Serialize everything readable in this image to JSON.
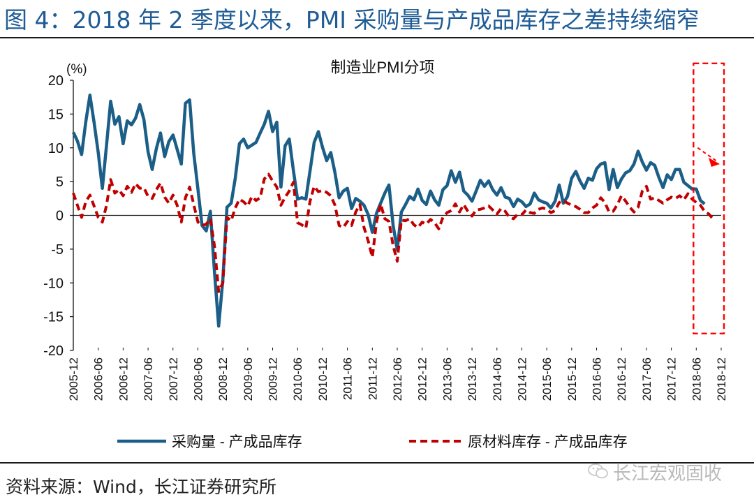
{
  "figure": {
    "title": "图 4：2018 年 2 季度以来，PMI 采购量与产成品库存之差持续缩窄",
    "source": "资料来源：Wind，长江证券研究所",
    "watermark": "长江宏观固收",
    "watermark_icon": "wechat-icon"
  },
  "colors": {
    "title": "#1f5c96",
    "series_1": "#1b5e87",
    "series_2": "#c00000",
    "highlight": "#ff0000"
  },
  "chart_data": {
    "type": "line",
    "title": "制造业PMI分项",
    "unit_label": "(%)",
    "ylim": [
      -20,
      20
    ],
    "yticks": [
      "20",
      "15",
      "10",
      "5",
      "0",
      "-5",
      "-10",
      "-15",
      "-20"
    ],
    "xlim": [
      0,
      156
    ],
    "xticks": [
      {
        "i": 0,
        "label": "2005-12"
      },
      {
        "i": 6,
        "label": "2006-06"
      },
      {
        "i": 12,
        "label": "2006-12"
      },
      {
        "i": 18,
        "label": "2007-06"
      },
      {
        "i": 24,
        "label": "2007-12"
      },
      {
        "i": 30,
        "label": "2008-06"
      },
      {
        "i": 36,
        "label": "2008-12"
      },
      {
        "i": 42,
        "label": "2009-06"
      },
      {
        "i": 48,
        "label": "2009-12"
      },
      {
        "i": 54,
        "label": "2010-06"
      },
      {
        "i": 60,
        "label": "2010-12"
      },
      {
        "i": 66,
        "label": "2011-06"
      },
      {
        "i": 72,
        "label": "2011-12"
      },
      {
        "i": 78,
        "label": "2012-06"
      },
      {
        "i": 84,
        "label": "2012-12"
      },
      {
        "i": 90,
        "label": "2013-06"
      },
      {
        "i": 96,
        "label": "2013-12"
      },
      {
        "i": 102,
        "label": "2014-06"
      },
      {
        "i": 108,
        "label": "2014-12"
      },
      {
        "i": 114,
        "label": "2015-06"
      },
      {
        "i": 120,
        "label": "2015-12"
      },
      {
        "i": 126,
        "label": "2016-06"
      },
      {
        "i": 132,
        "label": "2016-12"
      },
      {
        "i": 138,
        "label": "2017-06"
      },
      {
        "i": 144,
        "label": "2017-12"
      },
      {
        "i": 150,
        "label": "2018-06"
      },
      {
        "i": 156,
        "label": "2018-12"
      }
    ],
    "series": [
      {
        "name": "采购量 - 产成品库存",
        "style": "solid",
        "values": [
          12.3,
          11.0,
          9.0,
          13.8,
          17.8,
          13.8,
          9.3,
          4.0,
          10.4,
          16.9,
          13.5,
          14.6,
          10.6,
          14.0,
          13.4,
          14.4,
          16.4,
          14.2,
          9.4,
          6.8,
          9.9,
          12.2,
          8.7,
          10.9,
          11.9,
          9.8,
          7.6,
          16.6,
          17.1,
          9.2,
          3.9,
          -1.5,
          -2.3,
          0.6,
          -8.5,
          -16.4,
          -9.5,
          1.2,
          1.8,
          5.5,
          10.6,
          11.3,
          10.0,
          10.4,
          10.8,
          12.2,
          13.5,
          15.4,
          12.4,
          13.8,
          4.2,
          10.3,
          11.3,
          6.6,
          2.4,
          2.6,
          2.4,
          6.6,
          10.8,
          12.4,
          10.1,
          8.1,
          9.3,
          6.3,
          2.6,
          3.6,
          4.0,
          1.0,
          2.5,
          2.1,
          1.5,
          0.1,
          -2.5,
          0.3,
          1.8,
          3.3,
          4.5,
          -1.5,
          -5.1,
          0.5,
          1.6,
          2.8,
          2.3,
          3.9,
          2.2,
          1.6,
          3.6,
          2.3,
          1.5,
          3.8,
          4.4,
          6.6,
          4.9,
          6.4,
          3.6,
          3.0,
          2.1,
          3.6,
          5.2,
          4.3,
          5.1,
          3.8,
          3.0,
          4.1,
          2.7,
          2.5,
          1.3,
          2.4,
          2.0,
          1.3,
          1.7,
          3.3,
          2.3,
          2.0,
          1.8,
          1.1,
          2.1,
          4.5,
          1.8,
          2.8,
          5.5,
          6.5,
          5.1,
          4.0,
          5.5,
          5.2,
          6.9,
          7.6,
          7.8,
          3.8,
          6.8,
          4.1,
          5.4,
          6.3,
          6.6,
          7.6,
          9.5,
          7.9,
          6.7,
          7.8,
          7.4,
          5.6,
          4.1,
          6.0,
          5.3,
          6.8,
          6.8,
          4.9,
          4.4,
          3.9,
          3.9,
          2.2,
          1.7
        ]
      },
      {
        "name": "原材料库存 - 产成品库存",
        "style": "dashed",
        "values": [
          3.3,
          1.5,
          -0.3,
          2.0,
          3.0,
          1.4,
          -0.3,
          -1.0,
          1.5,
          5.3,
          3.3,
          3.8,
          2.9,
          4.3,
          3.4,
          4.7,
          4.0,
          4.1,
          2.8,
          2.5,
          3.8,
          4.8,
          2.7,
          1.8,
          3.0,
          1.5,
          -1.0,
          2.6,
          4.2,
          1.6,
          -1.0,
          -1.5,
          -1.3,
          -0.5,
          -4.6,
          -11.3,
          -10.0,
          -0.3,
          -0.8,
          1.1,
          2.4,
          2.0,
          1.4,
          2.8,
          2.2,
          2.6,
          5.4,
          6.1,
          5.1,
          4.2,
          1.5,
          2.7,
          3.6,
          4.9,
          -1.1,
          -1.4,
          -1.9,
          2.1,
          4.3,
          3.5,
          3.7,
          3.4,
          2.9,
          1.5,
          -1.5,
          -1.8,
          -0.9,
          -1.5,
          0.5,
          1.6,
          -1.8,
          -3.8,
          -6.2,
          -1.0,
          1.7,
          -0.5,
          -0.9,
          -4.5,
          -6.8,
          -0.7,
          -0.8,
          -0.5,
          -1.4,
          -1.8,
          -1.0,
          -1.3,
          -0.6,
          -1.1,
          -2.0,
          -0.3,
          0.4,
          0.7,
          1.7,
          0.5,
          1.6,
          0.6,
          -0.1,
          0.8,
          0.9,
          1.1,
          1.4,
          0.8,
          0.2,
          1.0,
          0.6,
          -0.3,
          -0.5,
          0.2,
          0.1,
          0.8,
          0.4,
          0.3,
          0.9,
          1.1,
          0.9,
          0.4,
          0.7,
          1.9,
          2.2,
          1.8,
          1.5,
          1.3,
          0.9,
          0.4,
          0.4,
          1.1,
          1.5,
          2.6,
          1.9,
          0.5,
          0.6,
          1.6,
          2.9,
          2.1,
          1.2,
          0.5,
          1.2,
          3.6,
          4.3,
          2.4,
          2.6,
          2.2,
          1.8,
          2.3,
          2.7,
          2.5,
          2.9,
          2.3,
          3.2,
          2.4,
          1.9,
          1.5,
          0.6,
          0.2,
          -0.5
        ]
      }
    ],
    "annotation": {
      "box_from_index": 150,
      "box_y_range": [
        -17.5,
        22.5
      ],
      "arrow": "downward trend marker"
    },
    "legend_position": "bottom"
  }
}
